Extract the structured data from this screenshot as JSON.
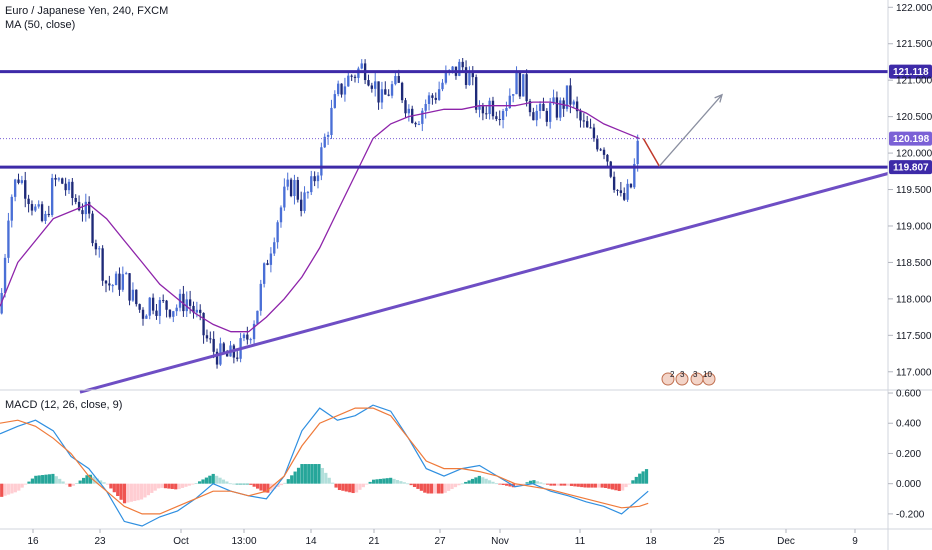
{
  "chart_data": [
    {
      "type": "candlestick",
      "legend": {
        "symbol": "Euro / Japanese Yen, 240, FXCM",
        "indicator": "MA (50, close)"
      },
      "colors": {
        "up": "#4a6fd6",
        "down": "#1e2a78",
        "ma": "#8e24aa",
        "level": "#3d2aa8",
        "trend": "#6e4ec4",
        "arrow": "#8a8fa0",
        "red_segment": "#c0392b"
      },
      "ylim": [
        116.75,
        122.1
      ],
      "y_ticks": [
        "122.000",
        "121.500",
        "121.000",
        "120.500",
        "120.000",
        "119.500",
        "119.000",
        "118.500",
        "118.000",
        "117.500",
        "117.000"
      ],
      "horizontal_levels": [
        {
          "value": 121.118,
          "label": "121.118"
        },
        {
          "value": 119.807,
          "label": "119.807"
        }
      ],
      "current_price": {
        "value": 120.198,
        "label": "120.198"
      },
      "trendline": {
        "from": [
          0.0,
          116.62
        ],
        "to": [
          1.0,
          119.72
        ]
      },
      "projection": {
        "bar_index": 0.736,
        "target": 120.8
      },
      "close_path": [
        [
          0,
          117.8
        ],
        [
          0.01,
          119.3
        ],
        [
          0.02,
          119.7
        ],
        [
          0.03,
          119.5
        ],
        [
          0.04,
          119.2
        ],
        [
          0.05,
          119.0
        ],
        [
          0.06,
          119.6
        ],
        [
          0.07,
          119.6
        ],
        [
          0.08,
          119.4
        ],
        [
          0.09,
          119.3
        ],
        [
          0.1,
          119.1
        ],
        [
          0.11,
          118.7
        ],
        [
          0.12,
          118.2
        ],
        [
          0.13,
          118.2
        ],
        [
          0.14,
          118.3
        ],
        [
          0.15,
          118.0
        ],
        [
          0.16,
          117.8
        ],
        [
          0.17,
          118.0
        ],
        [
          0.18,
          117.9
        ],
        [
          0.19,
          117.9
        ],
        [
          0.2,
          117.9
        ],
        [
          0.21,
          118.0
        ],
        [
          0.22,
          117.8
        ],
        [
          0.23,
          117.5
        ],
        [
          0.24,
          117.3
        ],
        [
          0.25,
          117.2
        ],
        [
          0.26,
          117.2
        ],
        [
          0.27,
          117.3
        ],
        [
          0.28,
          117.5
        ],
        [
          0.29,
          117.9
        ],
        [
          0.3,
          118.5
        ],
        [
          0.31,
          119.0
        ],
        [
          0.32,
          119.4
        ],
        [
          0.33,
          119.6
        ],
        [
          0.34,
          119.3
        ],
        [
          0.35,
          119.5
        ],
        [
          0.36,
          119.9
        ],
        [
          0.37,
          120.4
        ],
        [
          0.38,
          120.8
        ],
        [
          0.39,
          121.0
        ],
        [
          0.4,
          121.1
        ],
        [
          0.41,
          121.2
        ],
        [
          0.42,
          121.0
        ],
        [
          0.43,
          120.7
        ],
        [
          0.44,
          120.9
        ],
        [
          0.45,
          120.9
        ],
        [
          0.46,
          120.6
        ],
        [
          0.47,
          120.5
        ],
        [
          0.48,
          120.7
        ],
        [
          0.49,
          120.8
        ],
        [
          0.5,
          121.0
        ],
        [
          0.51,
          121.1
        ],
        [
          0.52,
          121.2
        ],
        [
          0.53,
          121.0
        ],
        [
          0.54,
          120.5
        ],
        [
          0.55,
          120.7
        ],
        [
          0.56,
          120.6
        ],
        [
          0.57,
          120.7
        ],
        [
          0.58,
          121.0
        ],
        [
          0.59,
          120.9
        ],
        [
          0.6,
          120.6
        ],
        [
          0.61,
          120.5
        ],
        [
          0.62,
          120.6
        ],
        [
          0.63,
          120.6
        ],
        [
          0.64,
          120.8
        ],
        [
          0.65,
          120.5
        ],
        [
          0.66,
          120.3
        ],
        [
          0.67,
          120.2
        ],
        [
          0.68,
          120.1
        ],
        [
          0.69,
          119.7
        ],
        [
          0.7,
          119.3
        ],
        [
          0.71,
          119.5
        ],
        [
          0.72,
          120.2
        ]
      ],
      "ma_path": [
        [
          0,
          117.9
        ],
        [
          0.02,
          118.5
        ],
        [
          0.04,
          118.8
        ],
        [
          0.06,
          119.1
        ],
        [
          0.08,
          119.2
        ],
        [
          0.1,
          119.3
        ],
        [
          0.12,
          119.1
        ],
        [
          0.14,
          118.8
        ],
        [
          0.16,
          118.5
        ],
        [
          0.18,
          118.2
        ],
        [
          0.2,
          118.0
        ],
        [
          0.22,
          117.8
        ],
        [
          0.24,
          117.65
        ],
        [
          0.26,
          117.55
        ],
        [
          0.28,
          117.55
        ],
        [
          0.3,
          117.75
        ],
        [
          0.32,
          118.0
        ],
        [
          0.34,
          118.3
        ],
        [
          0.36,
          118.7
        ],
        [
          0.38,
          119.2
        ],
        [
          0.4,
          119.7
        ],
        [
          0.42,
          120.2
        ],
        [
          0.44,
          120.4
        ],
        [
          0.46,
          120.5
        ],
        [
          0.48,
          120.55
        ],
        [
          0.5,
          120.6
        ],
        [
          0.52,
          120.6
        ],
        [
          0.54,
          120.65
        ],
        [
          0.56,
          120.65
        ],
        [
          0.58,
          120.65
        ],
        [
          0.6,
          120.7
        ],
        [
          0.62,
          120.7
        ],
        [
          0.64,
          120.65
        ],
        [
          0.66,
          120.55
        ],
        [
          0.68,
          120.4
        ],
        [
          0.7,
          120.3
        ],
        [
          0.72,
          120.2
        ]
      ],
      "events": [
        "2",
        "3",
        "3",
        "10"
      ]
    },
    {
      "type": "line",
      "legend": {
        "indicator": "MACD (12, 26, close, 9)"
      },
      "ylim": [
        -0.3,
        0.62
      ],
      "y_ticks": [
        "0.600",
        "0.400",
        "0.200",
        "0.000",
        "-0.200"
      ],
      "x_ticks": [
        "16",
        "23",
        "Oct",
        "13:00",
        "14",
        "21",
        "27",
        "Nov",
        "11",
        "18",
        "25",
        "Dec",
        "9"
      ],
      "macd_path": [
        [
          0,
          0.33
        ],
        [
          0.02,
          0.38
        ],
        [
          0.04,
          0.42
        ],
        [
          0.06,
          0.35
        ],
        [
          0.08,
          0.18
        ],
        [
          0.1,
          0.1
        ],
        [
          0.12,
          -0.05
        ],
        [
          0.14,
          -0.25
        ],
        [
          0.16,
          -0.28
        ],
        [
          0.18,
          -0.22
        ],
        [
          0.2,
          -0.18
        ],
        [
          0.22,
          -0.1
        ],
        [
          0.24,
          0.0
        ],
        [
          0.26,
          -0.05
        ],
        [
          0.28,
          -0.08
        ],
        [
          0.3,
          -0.1
        ],
        [
          0.32,
          0.05
        ],
        [
          0.34,
          0.35
        ],
        [
          0.36,
          0.5
        ],
        [
          0.38,
          0.42
        ],
        [
          0.4,
          0.45
        ],
        [
          0.42,
          0.52
        ],
        [
          0.44,
          0.48
        ],
        [
          0.46,
          0.3
        ],
        [
          0.48,
          0.1
        ],
        [
          0.5,
          0.05
        ],
        [
          0.52,
          0.1
        ],
        [
          0.54,
          0.12
        ],
        [
          0.56,
          0.05
        ],
        [
          0.58,
          -0.02
        ],
        [
          0.6,
          0.0
        ],
        [
          0.62,
          -0.05
        ],
        [
          0.64,
          -0.08
        ],
        [
          0.66,
          -0.12
        ],
        [
          0.68,
          -0.15
        ],
        [
          0.7,
          -0.2
        ],
        [
          0.72,
          -0.1
        ],
        [
          0.73,
          -0.05
        ]
      ],
      "signal_path": [
        [
          0,
          0.4
        ],
        [
          0.02,
          0.42
        ],
        [
          0.04,
          0.38
        ],
        [
          0.06,
          0.3
        ],
        [
          0.08,
          0.2
        ],
        [
          0.1,
          0.05
        ],
        [
          0.12,
          -0.05
        ],
        [
          0.14,
          -0.15
        ],
        [
          0.16,
          -0.2
        ],
        [
          0.18,
          -0.2
        ],
        [
          0.2,
          -0.15
        ],
        [
          0.22,
          -0.1
        ],
        [
          0.24,
          -0.05
        ],
        [
          0.26,
          -0.05
        ],
        [
          0.28,
          -0.08
        ],
        [
          0.3,
          -0.05
        ],
        [
          0.32,
          0.05
        ],
        [
          0.34,
          0.25
        ],
        [
          0.36,
          0.4
        ],
        [
          0.38,
          0.45
        ],
        [
          0.4,
          0.5
        ],
        [
          0.42,
          0.5
        ],
        [
          0.44,
          0.45
        ],
        [
          0.46,
          0.3
        ],
        [
          0.48,
          0.15
        ],
        [
          0.5,
          0.1
        ],
        [
          0.52,
          0.1
        ],
        [
          0.54,
          0.08
        ],
        [
          0.56,
          0.05
        ],
        [
          0.58,
          0.0
        ],
        [
          0.6,
          -0.02
        ],
        [
          0.62,
          -0.04
        ],
        [
          0.64,
          -0.07
        ],
        [
          0.66,
          -0.1
        ],
        [
          0.68,
          -0.13
        ],
        [
          0.7,
          -0.16
        ],
        [
          0.72,
          -0.15
        ],
        [
          0.73,
          -0.13
        ]
      ],
      "colors": {
        "macd": "#2f8fe0",
        "signal": "#ef7a3a",
        "hist_pos": "#26a69a",
        "hist_pos_light": "#b2dfdb",
        "hist_neg": "#ef5350",
        "hist_neg_light": "#ffcdd2"
      }
    }
  ]
}
